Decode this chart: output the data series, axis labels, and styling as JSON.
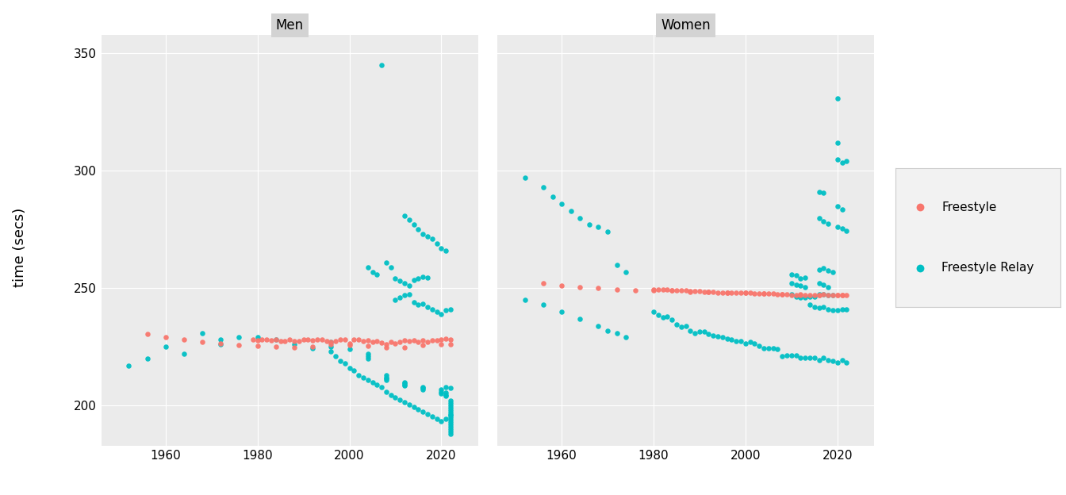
{
  "ylabel": "time (secs)",
  "panel_labels": [
    "Men",
    "Women"
  ],
  "ylim": [
    183,
    358
  ],
  "yticks": [
    200,
    250,
    300,
    350
  ],
  "xlim": [
    1946,
    2028
  ],
  "xticks": [
    1960,
    1980,
    2000,
    2020
  ],
  "bg_color": "#EBEBEB",
  "grid_color": "#FFFFFF",
  "freestyle_color": "#F8766D",
  "relay_color": "#00BFC4",
  "header_color": "#D3D3D3",
  "men_freestyle": [
    [
      1956,
      230.5
    ],
    [
      1960,
      229.2
    ],
    [
      1964,
      228.3
    ],
    [
      1968,
      227.1
    ],
    [
      1972,
      226.3
    ],
    [
      1976,
      225.8
    ],
    [
      1980,
      225.4
    ],
    [
      1984,
      225.0
    ],
    [
      1988,
      224.8
    ],
    [
      1992,
      225.2
    ],
    [
      1996,
      226.1
    ],
    [
      2000,
      225.9
    ],
    [
      2004,
      225.3
    ],
    [
      2008,
      224.6
    ],
    [
      2012,
      224.9
    ],
    [
      2016,
      225.7
    ],
    [
      2020,
      226.2
    ],
    [
      2022,
      226.0
    ],
    [
      1979,
      228.1
    ],
    [
      1980,
      227.8
    ],
    [
      1981,
      228.3
    ],
    [
      1982,
      228.0
    ],
    [
      1983,
      227.9
    ],
    [
      1984,
      228.2
    ],
    [
      1985,
      227.5
    ],
    [
      1986,
      227.3
    ],
    [
      1987,
      228.1
    ],
    [
      1988,
      227.6
    ],
    [
      1989,
      227.4
    ],
    [
      1990,
      228.0
    ],
    [
      1991,
      228.1
    ],
    [
      1992,
      227.9
    ],
    [
      1993,
      228.3
    ],
    [
      1994,
      228.0
    ],
    [
      1995,
      227.5
    ],
    [
      1996,
      227.2
    ],
    [
      1997,
      227.4
    ],
    [
      1998,
      228.1
    ],
    [
      1999,
      228.0
    ],
    [
      2000,
      226.3
    ],
    [
      2001,
      228.2
    ],
    [
      2002,
      228.0
    ],
    [
      2003,
      227.4
    ],
    [
      2004,
      227.8
    ],
    [
      2005,
      227.1
    ],
    [
      2006,
      227.3
    ],
    [
      2007,
      226.8
    ],
    [
      2008,
      226.2
    ],
    [
      2009,
      227.0
    ],
    [
      2010,
      226.5
    ],
    [
      2011,
      227.1
    ],
    [
      2012,
      227.8
    ],
    [
      2013,
      227.3
    ],
    [
      2014,
      227.9
    ],
    [
      2015,
      227.2
    ],
    [
      2016,
      227.8
    ],
    [
      2017,
      227.1
    ],
    [
      2018,
      227.8
    ],
    [
      2019,
      227.9
    ],
    [
      2020,
      228.0
    ],
    [
      2021,
      228.5
    ],
    [
      2022,
      228.1
    ]
  ],
  "men_relay": [
    [
      1952,
      217.0
    ],
    [
      1956,
      220.0
    ],
    [
      1960,
      225.0
    ],
    [
      1964,
      222.0
    ],
    [
      1968,
      231.0
    ],
    [
      1972,
      228.0
    ],
    [
      1972,
      226.0
    ],
    [
      1976,
      229.0
    ],
    [
      1980,
      229.0
    ],
    [
      1984,
      228.0
    ],
    [
      1988,
      226.0
    ],
    [
      1992,
      224.5
    ],
    [
      1996,
      227.0
    ],
    [
      1996,
      225.0
    ],
    [
      2000,
      224.0
    ],
    [
      2004,
      220.0
    ],
    [
      2008,
      213.0
    ],
    [
      2012,
      210.0
    ],
    [
      2016,
      208.0
    ],
    [
      2020,
      207.0
    ],
    [
      2021,
      208.0
    ],
    [
      2022,
      207.5
    ],
    [
      1996,
      223.0
    ],
    [
      1997,
      221.0
    ],
    [
      1998,
      219.0
    ],
    [
      1999,
      218.0
    ],
    [
      2000,
      216.0
    ],
    [
      2001,
      215.0
    ],
    [
      2002,
      213.0
    ],
    [
      2003,
      212.0
    ],
    [
      2004,
      211.0
    ],
    [
      2005,
      210.0
    ],
    [
      2006,
      209.0
    ],
    [
      2007,
      208.0
    ],
    [
      2008,
      206.0
    ],
    [
      2009,
      204.5
    ],
    [
      2010,
      203.5
    ],
    [
      2011,
      202.5
    ],
    [
      2012,
      201.5
    ],
    [
      2013,
      200.5
    ],
    [
      2014,
      199.5
    ],
    [
      2015,
      198.5
    ],
    [
      2016,
      197.5
    ],
    [
      2017,
      196.5
    ],
    [
      2018,
      195.5
    ],
    [
      2019,
      194.5
    ],
    [
      2020,
      193.5
    ],
    [
      2021,
      194.5
    ],
    [
      2022,
      196.0
    ],
    [
      2004,
      222.0
    ],
    [
      2004,
      221.0
    ],
    [
      2008,
      212.0
    ],
    [
      2008,
      211.5
    ],
    [
      2008,
      211.0
    ],
    [
      2012,
      209.5
    ],
    [
      2012,
      209.0
    ],
    [
      2012,
      208.5
    ],
    [
      2016,
      207.5
    ],
    [
      2016,
      207.0
    ],
    [
      2020,
      206.0
    ],
    [
      2020,
      205.0
    ],
    [
      2021,
      205.5
    ],
    [
      2021,
      204.5
    ],
    [
      2021,
      204.0
    ],
    [
      2022,
      202.0
    ],
    [
      2022,
      201.0
    ],
    [
      2022,
      200.0
    ],
    [
      2022,
      199.0
    ],
    [
      2022,
      198.0
    ],
    [
      2022,
      197.0
    ],
    [
      2022,
      196.0
    ],
    [
      2022,
      195.0
    ],
    [
      2022,
      194.0
    ],
    [
      2022,
      193.0
    ],
    [
      2022,
      192.0
    ],
    [
      2022,
      191.0
    ],
    [
      2022,
      190.0
    ],
    [
      2022,
      189.0
    ],
    [
      2022,
      188.0
    ],
    [
      2008,
      261.0
    ],
    [
      2009,
      259.0
    ],
    [
      2010,
      245.0
    ],
    [
      2011,
      246.0
    ],
    [
      2012,
      247.0
    ],
    [
      2013,
      247.5
    ],
    [
      2014,
      244.0
    ],
    [
      2015,
      243.0
    ],
    [
      2016,
      243.5
    ],
    [
      2017,
      242.0
    ],
    [
      2018,
      241.0
    ],
    [
      2019,
      240.0
    ],
    [
      2020,
      239.0
    ],
    [
      2021,
      240.5
    ],
    [
      2022,
      241.0
    ],
    [
      2010,
      254.0
    ],
    [
      2011,
      253.0
    ],
    [
      2012,
      252.0
    ],
    [
      2013,
      251.0
    ],
    [
      2014,
      253.5
    ],
    [
      2015,
      254.0
    ],
    [
      2016,
      255.0
    ],
    [
      2017,
      254.5
    ],
    [
      2004,
      259.0
    ],
    [
      2005,
      257.0
    ],
    [
      2006,
      256.0
    ],
    [
      2012,
      281.0
    ],
    [
      2013,
      279.0
    ],
    [
      2014,
      277.0
    ],
    [
      2015,
      275.0
    ],
    [
      2016,
      273.0
    ],
    [
      2017,
      272.0
    ],
    [
      2018,
      271.0
    ],
    [
      2019,
      269.0
    ],
    [
      2020,
      267.0
    ],
    [
      2021,
      266.0
    ],
    [
      2007,
      345.0
    ]
  ],
  "women_freestyle": [
    [
      1956,
      252.0
    ],
    [
      1960,
      251.0
    ],
    [
      1964,
      250.5
    ],
    [
      1968,
      250.0
    ],
    [
      1972,
      249.5
    ],
    [
      1976,
      249.2
    ],
    [
      1980,
      249.0
    ],
    [
      1984,
      249.0
    ],
    [
      1988,
      248.5
    ],
    [
      1992,
      248.3
    ],
    [
      1996,
      248.2
    ],
    [
      2000,
      248.1
    ],
    [
      2004,
      247.8
    ],
    [
      2008,
      247.5
    ],
    [
      2012,
      247.3
    ],
    [
      2016,
      247.1
    ],
    [
      2020,
      247.0
    ],
    [
      2021,
      247.0
    ],
    [
      1980,
      249.5
    ],
    [
      1981,
      249.4
    ],
    [
      1982,
      249.3
    ],
    [
      1983,
      249.3
    ],
    [
      1984,
      249.2
    ],
    [
      1985,
      249.1
    ],
    [
      1986,
      249.0
    ],
    [
      1987,
      249.0
    ],
    [
      1988,
      248.8
    ],
    [
      1989,
      248.7
    ],
    [
      1990,
      248.6
    ],
    [
      1991,
      248.5
    ],
    [
      1992,
      248.4
    ],
    [
      1993,
      248.3
    ],
    [
      1994,
      248.2
    ],
    [
      1995,
      248.1
    ],
    [
      1996,
      248.0
    ],
    [
      1997,
      248.0
    ],
    [
      1998,
      248.0
    ],
    [
      1999,
      248.0
    ],
    [
      2000,
      248.0
    ],
    [
      2001,
      248.0
    ],
    [
      2002,
      247.9
    ],
    [
      2003,
      247.8
    ],
    [
      2004,
      247.7
    ],
    [
      2005,
      247.6
    ],
    [
      2006,
      247.6
    ],
    [
      2007,
      247.5
    ],
    [
      2008,
      247.4
    ],
    [
      2009,
      247.3
    ],
    [
      2010,
      247.2
    ],
    [
      2011,
      247.2
    ],
    [
      2012,
      247.1
    ],
    [
      2013,
      247.1
    ],
    [
      2014,
      247.0
    ],
    [
      2015,
      247.0
    ],
    [
      2016,
      247.0
    ],
    [
      2017,
      247.5
    ],
    [
      2018,
      247.0
    ],
    [
      2019,
      247.0
    ],
    [
      2020,
      247.0
    ],
    [
      2021,
      247.0
    ],
    [
      2022,
      247.0
    ]
  ],
  "women_relay": [
    [
      1952,
      297.0
    ],
    [
      1956,
      293.0
    ],
    [
      1958,
      289.0
    ],
    [
      1960,
      286.0
    ],
    [
      1962,
      283.0
    ],
    [
      1964,
      280.0
    ],
    [
      1966,
      277.0
    ],
    [
      1968,
      276.0
    ],
    [
      1970,
      274.0
    ],
    [
      1972,
      260.0
    ],
    [
      1974,
      257.0
    ],
    [
      1952,
      245.0
    ],
    [
      1956,
      243.0
    ],
    [
      1960,
      240.0
    ],
    [
      1964,
      237.0
    ],
    [
      1968,
      234.0
    ],
    [
      1970,
      232.0
    ],
    [
      1972,
      231.0
    ],
    [
      1974,
      229.0
    ],
    [
      1980,
      240.0
    ],
    [
      1981,
      238.5
    ],
    [
      1982,
      237.5
    ],
    [
      1983,
      238.0
    ],
    [
      1984,
      236.5
    ],
    [
      1985,
      234.5
    ],
    [
      1986,
      233.5
    ],
    [
      1987,
      234.0
    ],
    [
      1988,
      232.0
    ],
    [
      1989,
      231.0
    ],
    [
      1990,
      231.5
    ],
    [
      1991,
      231.5
    ],
    [
      1992,
      230.5
    ],
    [
      1993,
      230.0
    ],
    [
      1994,
      229.5
    ],
    [
      1995,
      229.0
    ],
    [
      1996,
      228.5
    ],
    [
      1997,
      228.0
    ],
    [
      1998,
      227.5
    ],
    [
      1999,
      227.5
    ],
    [
      2000,
      226.5
    ],
    [
      2001,
      227.0
    ],
    [
      2002,
      226.5
    ],
    [
      2003,
      225.5
    ],
    [
      2004,
      224.5
    ],
    [
      2005,
      224.5
    ],
    [
      2006,
      224.5
    ],
    [
      2007,
      224.0
    ],
    [
      2008,
      221.0
    ],
    [
      2009,
      221.5
    ],
    [
      2010,
      221.5
    ],
    [
      2011,
      221.5
    ],
    [
      2012,
      220.5
    ],
    [
      2013,
      220.5
    ],
    [
      2014,
      220.5
    ],
    [
      2015,
      220.5
    ],
    [
      2016,
      219.5
    ],
    [
      2017,
      220.5
    ],
    [
      2018,
      219.5
    ],
    [
      2019,
      219.0
    ],
    [
      2020,
      218.5
    ],
    [
      2021,
      219.5
    ],
    [
      2022,
      218.5
    ],
    [
      2014,
      243.0
    ],
    [
      2015,
      242.0
    ],
    [
      2016,
      241.5
    ],
    [
      2017,
      242.0
    ],
    [
      2018,
      241.0
    ],
    [
      2019,
      240.5
    ],
    [
      2020,
      240.5
    ],
    [
      2021,
      241.0
    ],
    [
      2022,
      241.0
    ],
    [
      2010,
      247.5
    ],
    [
      2011,
      246.5
    ],
    [
      2012,
      246.0
    ],
    [
      2013,
      246.0
    ],
    [
      2014,
      246.5
    ],
    [
      2015,
      246.5
    ],
    [
      2016,
      247.5
    ],
    [
      2017,
      247.5
    ],
    [
      2018,
      247.0
    ],
    [
      2019,
      247.0
    ],
    [
      2010,
      252.0
    ],
    [
      2011,
      251.5
    ],
    [
      2012,
      251.0
    ],
    [
      2013,
      250.5
    ],
    [
      2016,
      252.0
    ],
    [
      2017,
      251.5
    ],
    [
      2018,
      250.5
    ],
    [
      2010,
      256.0
    ],
    [
      2011,
      255.5
    ],
    [
      2012,
      254.0
    ],
    [
      2013,
      254.5
    ],
    [
      2016,
      258.0
    ],
    [
      2017,
      258.5
    ],
    [
      2018,
      257.5
    ],
    [
      2019,
      257.0
    ],
    [
      2020,
      276.0
    ],
    [
      2021,
      275.5
    ],
    [
      2022,
      274.5
    ],
    [
      2016,
      280.0
    ],
    [
      2017,
      278.5
    ],
    [
      2018,
      277.5
    ],
    [
      2020,
      285.0
    ],
    [
      2021,
      283.5
    ],
    [
      2016,
      291.0
    ],
    [
      2017,
      290.5
    ],
    [
      2020,
      305.0
    ],
    [
      2021,
      303.5
    ],
    [
      2022,
      304.0
    ],
    [
      2020,
      312.0
    ],
    [
      2020,
      331.0
    ]
  ]
}
